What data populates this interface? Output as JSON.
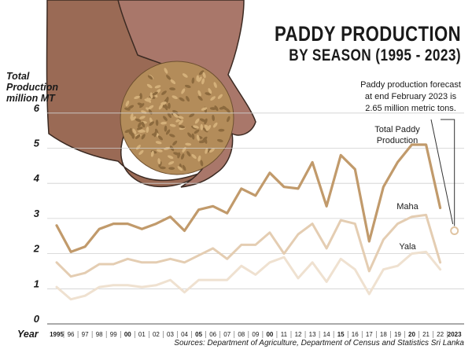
{
  "title_line1": "PADDY PRODUCTION",
  "title_line2": "BY SEASON (1995 - 2023)",
  "ylabel_line1": "Total",
  "ylabel_line2": "Production",
  "ylabel_line3": "million MT",
  "xlabel": "Year",
  "note_line1": "Paddy production forecast",
  "note_line2": "at end February 2023 is",
  "note_line3": "2.65 million metric tons.",
  "source": "Sources: Department of Agriculture, Department of Census and Statistics Sri Lanka",
  "colors": {
    "total": "#c19a6b",
    "maha": "#e4cdb2",
    "yala": "#efe1d0",
    "grid": "#cfcfcf",
    "forecast_marker": "#e0c4a2"
  },
  "chart_data": {
    "type": "line",
    "title": "PADDY PRODUCTION BY SEASON (1995 - 2023)",
    "ylabel": "Total Production million MT",
    "xlabel": "Year",
    "ylim": [
      0,
      6
    ],
    "yticks": [
      "0",
      "1",
      "2",
      "3",
      "4",
      "5",
      "6"
    ],
    "grid": true,
    "x": [
      "1995",
      "96",
      "97",
      "98",
      "99",
      "00",
      "01",
      "02",
      "03",
      "04",
      "05",
      "06",
      "07",
      "08",
      "09",
      "00",
      "11",
      "12",
      "13",
      "14",
      "15",
      "16",
      "17",
      "18",
      "19",
      "20",
      "21",
      "22",
      "2023"
    ],
    "series": [
      {
        "name": "Total Paddy Production",
        "values": [
          2.8,
          2.05,
          2.2,
          2.7,
          2.85,
          2.85,
          2.7,
          2.85,
          3.05,
          2.65,
          3.25,
          3.35,
          3.15,
          3.85,
          3.65,
          4.3,
          3.9,
          3.85,
          4.6,
          3.35,
          4.8,
          4.4,
          2.35,
          3.9,
          4.6,
          5.1,
          5.1,
          3.3,
          null
        ]
      },
      {
        "name": "Maha",
        "values": [
          1.75,
          1.35,
          1.45,
          1.7,
          1.7,
          1.85,
          1.75,
          1.75,
          1.85,
          1.75,
          1.95,
          2.15,
          1.85,
          2.25,
          2.25,
          2.6,
          2.0,
          2.55,
          2.85,
          2.15,
          2.95,
          2.85,
          1.5,
          2.4,
          2.85,
          3.05,
          3.1,
          1.75,
          null
        ]
      },
      {
        "name": "Yala",
        "values": [
          1.05,
          0.7,
          0.8,
          1.05,
          1.1,
          1.1,
          1.05,
          1.1,
          1.25,
          0.9,
          1.25,
          1.25,
          1.25,
          1.65,
          1.4,
          1.75,
          1.9,
          1.3,
          1.75,
          1.2,
          1.85,
          1.55,
          0.85,
          1.55,
          1.65,
          2.0,
          2.05,
          1.55,
          null
        ]
      }
    ],
    "forecast": {
      "x": "2023",
      "value": 2.65
    },
    "legend_labels": [
      "Total Paddy",
      "Production",
      "Maha",
      "Yala"
    ]
  }
}
